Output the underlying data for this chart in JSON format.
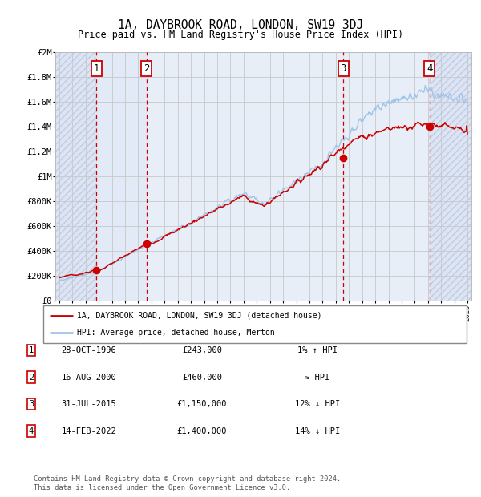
{
  "title": "1A, DAYBROOK ROAD, LONDON, SW19 3DJ",
  "subtitle": "Price paid vs. HM Land Registry's House Price Index (HPI)",
  "x_start_year": 1994,
  "x_end_year": 2025,
  "y_min": 0,
  "y_max": 2000000,
  "y_ticks": [
    0,
    200000,
    400000,
    600000,
    800000,
    1000000,
    1200000,
    1400000,
    1600000,
    1800000,
    2000000
  ],
  "y_tick_labels": [
    "£0",
    "£200K",
    "£400K",
    "£600K",
    "£800K",
    "£1M",
    "£1.2M",
    "£1.4M",
    "£1.6M",
    "£1.8M",
    "£2M"
  ],
  "bg_color": "#ffffff",
  "plot_bg_color": "#eef2fa",
  "grid_color": "#c8c8c8",
  "hpi_line_color": "#a0c4e8",
  "price_line_color": "#cc0000",
  "sale_marker_color": "#cc0000",
  "sale_marker_size": 7,
  "sale_points": [
    {
      "year": 1996.83,
      "price": 243000,
      "label": "1"
    },
    {
      "year": 2000.62,
      "price": 460000,
      "label": "2"
    },
    {
      "year": 2015.58,
      "price": 1150000,
      "label": "3"
    },
    {
      "year": 2022.12,
      "price": 1400000,
      "label": "4"
    }
  ],
  "vline_years": [
    1996.83,
    2000.62,
    2015.58,
    2022.12
  ],
  "legend_entries": [
    "1A, DAYBROOK ROAD, LONDON, SW19 3DJ (detached house)",
    "HPI: Average price, detached house, Merton"
  ],
  "table_rows": [
    {
      "num": "1",
      "date": "28-OCT-1996",
      "price": "£243,000",
      "hpi": "1% ↑ HPI"
    },
    {
      "num": "2",
      "date": "16-AUG-2000",
      "price": "£460,000",
      "hpi": "≈ HPI"
    },
    {
      "num": "3",
      "date": "31-JUL-2015",
      "price": "£1,150,000",
      "hpi": "12% ↓ HPI"
    },
    {
      "num": "4",
      "date": "14-FEB-2022",
      "price": "£1,400,000",
      "hpi": "14% ↓ HPI"
    }
  ],
  "footnote": "Contains HM Land Registry data © Crown copyright and database right 2024.\nThis data is licensed under the Open Government Licence v3.0."
}
